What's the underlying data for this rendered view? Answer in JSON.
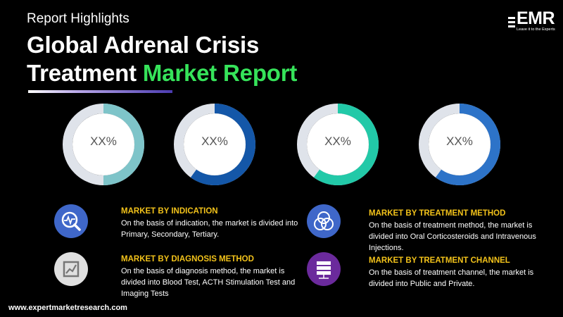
{
  "header": {
    "subtitle": "Report Highlights",
    "title_part1": "Global Adrenal Crisis",
    "title_part2": "Treatment",
    "title_accent": "Market Report",
    "accent_color": "#36e35a"
  },
  "logo": {
    "text": "EMR",
    "tagline": "Leave it to the Experts"
  },
  "donuts": [
    {
      "label": "XX%",
      "fraction": 0.5,
      "color": "#7ec4c9"
    },
    {
      "label": "XX%",
      "fraction": 0.6,
      "color": "#1457a8"
    },
    {
      "label": "XX%",
      "fraction": 0.6,
      "color": "#22c9a8"
    },
    {
      "label": "XX%",
      "fraction": 0.6,
      "color": "#2d73c8"
    }
  ],
  "segments": [
    {
      "title": "MARKET BY INDICATION",
      "desc": "On the basis of indication, the market is divided into Primary, Secondary, Tertiary.",
      "icon": "magnifier-chart-icon"
    },
    {
      "title": "MARKET BY DIAGNOSIS METHOD",
      "desc": "On the basis of diagnosis method, the market is divided into Blood Test, ACTH Stimulation Test and Imaging Tests",
      "icon": "line-chart-icon"
    },
    {
      "title": "MARKET BY TREATMENT METHOD",
      "desc": "On the basis of treatment method, the market is divided into Oral Corticosteroids and Intravenous Injections.",
      "icon": "venn-circles-icon"
    },
    {
      "title": "MARKET BY TREATMENT CHANNEL",
      "desc": "On the basis of treatment channel, the market is divided into Public and Private.",
      "icon": "server-icon"
    }
  ],
  "footer": {
    "url": "www.expertmarketresearch.com"
  }
}
